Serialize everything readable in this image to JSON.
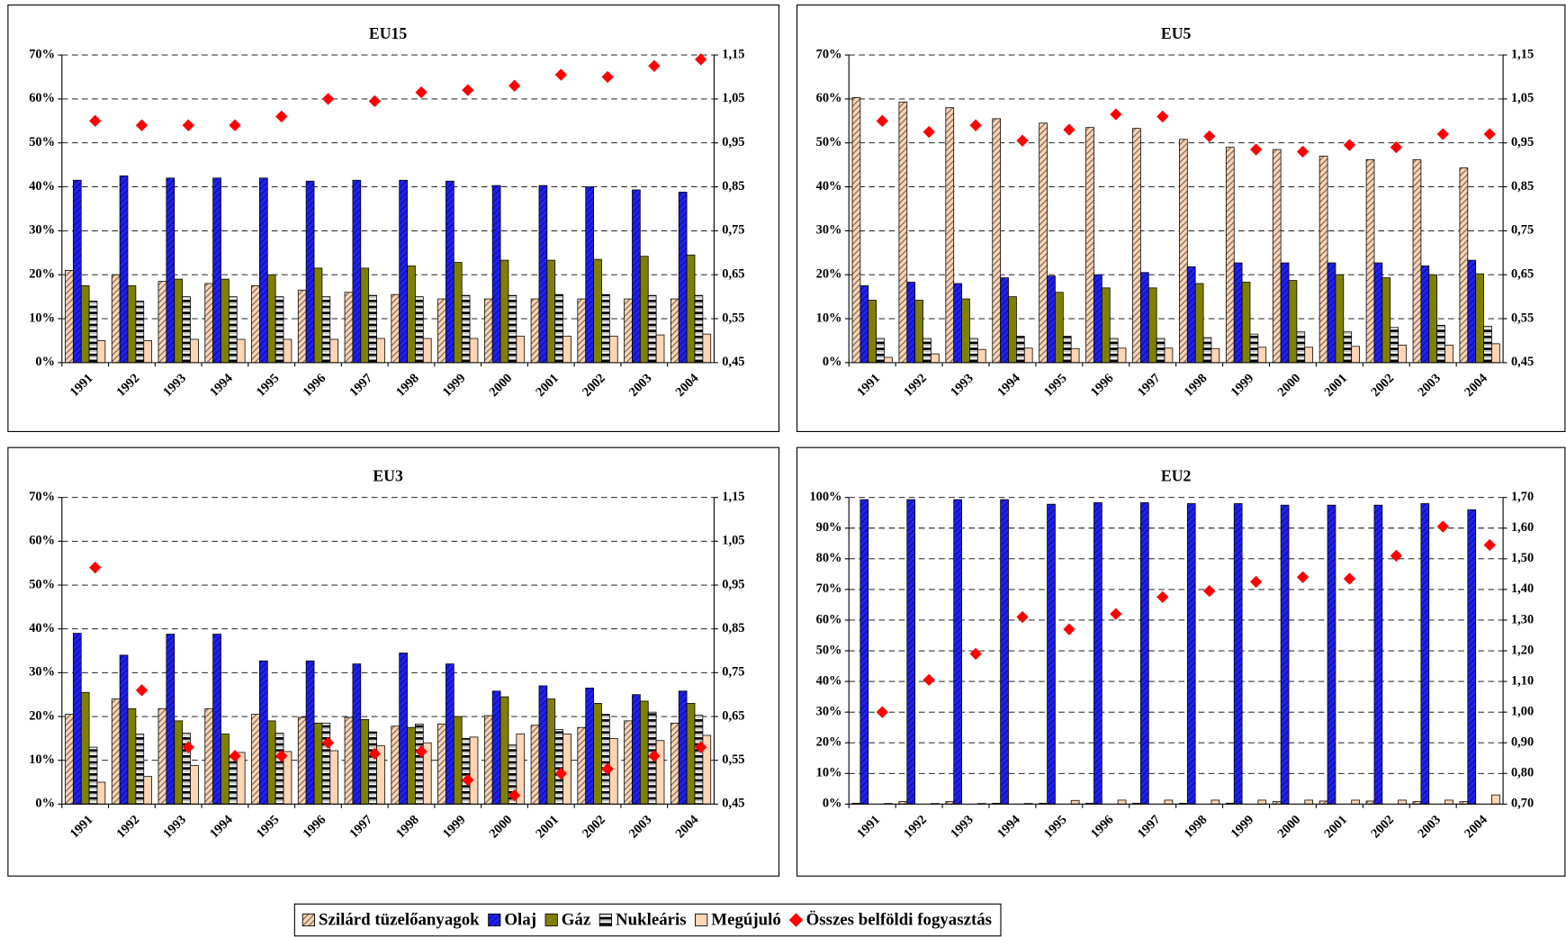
{
  "chart_data": [
    {
      "type": "bar",
      "title": "EU15",
      "categories": [
        "1991",
        "1992",
        "1993",
        "1994",
        "1995",
        "1996",
        "1997",
        "1998",
        "1999",
        "2000",
        "2001",
        "2002",
        "2003",
        "2004"
      ],
      "series": [
        {
          "name": "Szilárd tüzelőanyagok",
          "color": "#fbd4b4",
          "hatch": "diagonal",
          "values": [
            21,
            20,
            18.5,
            18,
            17.5,
            16.5,
            16,
            15.5,
            14.5,
            14.5,
            14.5,
            14.5,
            14.5,
            14.5
          ]
        },
        {
          "name": "Olaj",
          "color": "#2020ff",
          "hatch": "diagonal",
          "values": [
            41.5,
            42.5,
            42,
            42,
            42,
            41.3,
            41.5,
            41.5,
            41.3,
            40.3,
            40.3,
            40,
            39.3,
            38.8
          ]
        },
        {
          "name": "Gáz",
          "color": "#808000",
          "hatch": "none",
          "values": [
            17.5,
            17.5,
            19,
            19,
            20,
            21.5,
            21.5,
            22,
            22.8,
            23.3,
            23.3,
            23.5,
            24.2,
            24.5
          ]
        },
        {
          "name": "Nukleáris",
          "color": "#c0c0c0",
          "hatch": "horizontal",
          "values": [
            14,
            14,
            15,
            15,
            15,
            15,
            15.3,
            15,
            15.3,
            15.3,
            15.5,
            15.5,
            15.3,
            15.3
          ]
        },
        {
          "name": "Megújuló",
          "color": "#fcd5b4",
          "hatch": "none",
          "values": [
            5,
            5,
            5.3,
            5.3,
            5.3,
            5.3,
            5.5,
            5.5,
            5.5,
            6,
            6,
            6,
            6.3,
            6.5
          ]
        },
        {
          "name": "Összes belföldi fogyasztás",
          "color": "#ff0000",
          "type": "scatter",
          "marker": "diamond",
          "axis": "y2",
          "values": [
            1.0,
            0.99,
            0.99,
            0.99,
            1.01,
            1.05,
            1.045,
            1.065,
            1.07,
            1.08,
            1.105,
            1.1,
            1.125,
            1.14
          ]
        }
      ],
      "ylim": [
        0,
        70
      ],
      "yticks": [
        {
          "value": 0,
          "label": "0%"
        },
        {
          "value": 10,
          "label": "10%"
        },
        {
          "value": 20,
          "label": "20%"
        },
        {
          "value": 30,
          "label": "30%"
        },
        {
          "value": 40,
          "label": "40%"
        },
        {
          "value": 50,
          "label": "50%"
        },
        {
          "value": 60,
          "label": "60%"
        },
        {
          "value": 70,
          "label": "70%"
        }
      ],
      "y2lim": [
        0.45,
        1.15
      ],
      "y2ticks": [
        {
          "value": 0.45,
          "label": "0,45"
        },
        {
          "value": 0.55,
          "label": "0,55"
        },
        {
          "value": 0.65,
          "label": "0,65"
        },
        {
          "value": 0.75,
          "label": "0,75"
        },
        {
          "value": 0.85,
          "label": "0,85"
        },
        {
          "value": 0.95,
          "label": "0,95"
        },
        {
          "value": 1.05,
          "label": "1,05"
        },
        {
          "value": 1.15,
          "label": "1,15"
        }
      ],
      "grid": true
    },
    {
      "type": "bar",
      "title": "EU5",
      "categories": [
        "1991",
        "1992",
        "1993",
        "1994",
        "1995",
        "1996",
        "1997",
        "1998",
        "1999",
        "2000",
        "2001",
        "2002",
        "2003",
        "2004"
      ],
      "series": [
        {
          "name": "Szilárd tüzelőanyagok",
          "color": "#fbd4b4",
          "hatch": "diagonal",
          "values": [
            60.3,
            59.3,
            58,
            55.5,
            54.5,
            53.5,
            53.3,
            50.8,
            49,
            48.5,
            47,
            46.2,
            46.2,
            44.3
          ]
        },
        {
          "name": "Olaj",
          "color": "#2020ff",
          "hatch": "diagonal",
          "values": [
            17.5,
            18.3,
            18,
            19.3,
            19.7,
            20,
            20.5,
            21.8,
            22.7,
            22.7,
            22.7,
            22.7,
            22,
            23.3
          ]
        },
        {
          "name": "Gáz",
          "color": "#808000",
          "hatch": "none",
          "values": [
            14.2,
            14.2,
            14.5,
            15,
            16,
            17,
            17,
            18,
            18.3,
            18.7,
            20,
            19.3,
            20,
            20.2
          ]
        },
        {
          "name": "Nukleáris",
          "color": "#c0c0c0",
          "hatch": "horizontal",
          "values": [
            5.5,
            5.5,
            5.5,
            6,
            6,
            5.5,
            5.5,
            5.7,
            6.5,
            7,
            7,
            8,
            8.5,
            8.3
          ]
        },
        {
          "name": "Megújuló",
          "color": "#fcd5b4",
          "hatch": "none",
          "values": [
            1.2,
            2,
            3,
            3.3,
            3.2,
            3.3,
            3.3,
            3.2,
            3.5,
            3.5,
            3.7,
            4,
            4,
            4.3
          ]
        },
        {
          "name": "Összes belföldi fogyasztás",
          "color": "#ff0000",
          "type": "scatter",
          "marker": "diamond",
          "axis": "y2",
          "values": [
            1.0,
            0.975,
            0.99,
            0.955,
            0.98,
            1.015,
            1.01,
            0.965,
            0.935,
            0.93,
            0.945,
            0.94,
            0.97,
            0.97
          ]
        }
      ],
      "ylim": [
        0,
        70
      ],
      "yticks": [
        {
          "value": 0,
          "label": "0%"
        },
        {
          "value": 10,
          "label": "10%"
        },
        {
          "value": 20,
          "label": "20%"
        },
        {
          "value": 30,
          "label": "30%"
        },
        {
          "value": 40,
          "label": "40%"
        },
        {
          "value": 50,
          "label": "50%"
        },
        {
          "value": 60,
          "label": "60%"
        },
        {
          "value": 70,
          "label": "70%"
        }
      ],
      "y2lim": [
        0.45,
        1.15
      ],
      "y2ticks": [
        {
          "value": 0.45,
          "label": "0,45"
        },
        {
          "value": 0.55,
          "label": "0,55"
        },
        {
          "value": 0.65,
          "label": "0,65"
        },
        {
          "value": 0.75,
          "label": "0,75"
        },
        {
          "value": 0.85,
          "label": "0,85"
        },
        {
          "value": 0.95,
          "label": "0,95"
        },
        {
          "value": 1.05,
          "label": "1,05"
        },
        {
          "value": 1.15,
          "label": "1,15"
        }
      ],
      "grid": true
    },
    {
      "type": "bar",
      "title": "EU3",
      "categories": [
        "1991",
        "1992",
        "1993",
        "1994",
        "1995",
        "1996",
        "1997",
        "1998",
        "1999",
        "2000",
        "2001",
        "2002",
        "2003",
        "2004"
      ],
      "series": [
        {
          "name": "Szilárd tüzelőanyagok",
          "color": "#fbd4b4",
          "hatch": "diagonal",
          "values": [
            20.5,
            24,
            21.8,
            21.8,
            20.5,
            19.8,
            19.8,
            17.8,
            18.3,
            20.2,
            18,
            17.5,
            19,
            18.5
          ]
        },
        {
          "name": "Olaj",
          "color": "#2020ff",
          "hatch": "diagonal",
          "values": [
            39,
            34,
            38.8,
            38.8,
            32.7,
            32.7,
            32,
            34.5,
            32,
            25.8,
            27,
            26.5,
            25,
            25.8
          ]
        },
        {
          "name": "Gáz",
          "color": "#808000",
          "hatch": "none",
          "values": [
            25.5,
            21.8,
            19,
            16,
            19,
            18.5,
            19.3,
            17.5,
            20,
            24.5,
            24,
            23,
            23.5,
            23
          ]
        },
        {
          "name": "Nukleáris",
          "color": "#c0c0c0",
          "hatch": "horizontal",
          "values": [
            13,
            16,
            16.2,
            11,
            16.2,
            18.5,
            16.5,
            18.3,
            15,
            13.5,
            17,
            20.5,
            21,
            20.3
          ]
        },
        {
          "name": "Megújuló",
          "color": "#fcd5b4",
          "hatch": "none",
          "values": [
            5,
            6.3,
            8.8,
            11.8,
            12,
            12.2,
            13.3,
            14,
            15.3,
            16,
            16,
            15,
            14.5,
            15.7
          ]
        },
        {
          "name": "Összes belföldi fogyasztás",
          "color": "#ff0000",
          "type": "scatter",
          "marker": "diamond",
          "axis": "y2",
          "values": [
            0.99,
            0.71,
            0.58,
            0.56,
            0.56,
            0.59,
            0.565,
            0.57,
            0.505,
            0.47,
            0.52,
            0.53,
            0.56,
            0.58
          ]
        }
      ],
      "ylim": [
        0,
        70
      ],
      "yticks": [
        {
          "value": 0,
          "label": "0%"
        },
        {
          "value": 10,
          "label": "10%"
        },
        {
          "value": 20,
          "label": "20%"
        },
        {
          "value": 30,
          "label": "30%"
        },
        {
          "value": 40,
          "label": "40%"
        },
        {
          "value": 50,
          "label": "50%"
        },
        {
          "value": 60,
          "label": "60%"
        },
        {
          "value": 70,
          "label": "70%"
        }
      ],
      "y2lim": [
        0.45,
        1.15
      ],
      "y2ticks": [
        {
          "value": 0.45,
          "label": "0,45"
        },
        {
          "value": 0.55,
          "label": "0,55"
        },
        {
          "value": 0.65,
          "label": "0,65"
        },
        {
          "value": 0.75,
          "label": "0,75"
        },
        {
          "value": 0.85,
          "label": "0,85"
        },
        {
          "value": 0.95,
          "label": "0,95"
        },
        {
          "value": 1.05,
          "label": "1,05"
        },
        {
          "value": 1.15,
          "label": "1,15"
        }
      ],
      "grid": true
    },
    {
      "type": "bar",
      "title": "EU2",
      "categories": [
        "1991",
        "1992",
        "1993",
        "1994",
        "1995",
        "1996",
        "1997",
        "1998",
        "1999",
        "2000",
        "2001",
        "2002",
        "2003",
        "2004"
      ],
      "series": [
        {
          "name": "Szilárd tüzelőanyagok",
          "color": "#fbd4b4",
          "hatch": "diagonal",
          "values": [
            0.3,
            0.8,
            0.8,
            0.3,
            0.3,
            0.3,
            0.3,
            0.3,
            0.3,
            0.8,
            1,
            1,
            0.8,
            0.8
          ]
        },
        {
          "name": "Olaj",
          "color": "#2020ff",
          "hatch": "diagonal",
          "values": [
            99.3,
            99.3,
            99.3,
            99.3,
            97.8,
            98.3,
            98.3,
            98,
            98,
            97.5,
            97.5,
            97.5,
            98,
            96
          ]
        },
        {
          "name": "Gáz",
          "color": "#808000",
          "hatch": "none",
          "values": [
            0,
            0,
            0,
            0,
            0,
            0,
            0,
            0,
            0,
            0,
            0,
            0,
            0,
            0
          ]
        },
        {
          "name": "Nukleáris",
          "color": "#c0c0c0",
          "hatch": "horizontal",
          "values": [
            0,
            0,
            0,
            0,
            0,
            0,
            0,
            0,
            0,
            0,
            0,
            0,
            0,
            0
          ]
        },
        {
          "name": "Megújuló",
          "color": "#fcd5b4",
          "hatch": "none",
          "values": [
            0.2,
            0.2,
            0.2,
            0.2,
            1.2,
            1.3,
            1.3,
            1.3,
            1.3,
            1.3,
            1.3,
            1.3,
            1.3,
            3
          ]
        },
        {
          "name": "Összes belföldi fogyasztás",
          "color": "#ff0000",
          "type": "scatter",
          "marker": "diamond",
          "axis": "y2",
          "values": [
            1.0,
            1.105,
            1.19,
            1.31,
            1.27,
            1.32,
            1.375,
            1.395,
            1.425,
            1.44,
            1.435,
            1.51,
            1.605,
            1.545
          ]
        }
      ],
      "ylim": [
        0,
        100
      ],
      "yticks": [
        {
          "value": 0,
          "label": "0%"
        },
        {
          "value": 10,
          "label": "10%"
        },
        {
          "value": 20,
          "label": "20%"
        },
        {
          "value": 30,
          "label": "30%"
        },
        {
          "value": 40,
          "label": "40%"
        },
        {
          "value": 50,
          "label": "50%"
        },
        {
          "value": 60,
          "label": "60%"
        },
        {
          "value": 70,
          "label": "70%"
        },
        {
          "value": 80,
          "label": "80%"
        },
        {
          "value": 90,
          "label": "90%"
        },
        {
          "value": 100,
          "label": "100%"
        }
      ],
      "y2lim": [
        0.7,
        1.7
      ],
      "y2ticks": [
        {
          "value": 0.7,
          "label": "0,70"
        },
        {
          "value": 0.8,
          "label": "0,80"
        },
        {
          "value": 0.9,
          "label": "0,90"
        },
        {
          "value": 1.0,
          "label": "1,00"
        },
        {
          "value": 1.1,
          "label": "1,10"
        },
        {
          "value": 1.2,
          "label": "1,20"
        },
        {
          "value": 1.3,
          "label": "1,30"
        },
        {
          "value": 1.4,
          "label": "1,40"
        },
        {
          "value": 1.5,
          "label": "1,50"
        },
        {
          "value": 1.6,
          "label": "1,60"
        },
        {
          "value": 1.7,
          "label": "1,70"
        }
      ],
      "grid": true
    }
  ]
}
